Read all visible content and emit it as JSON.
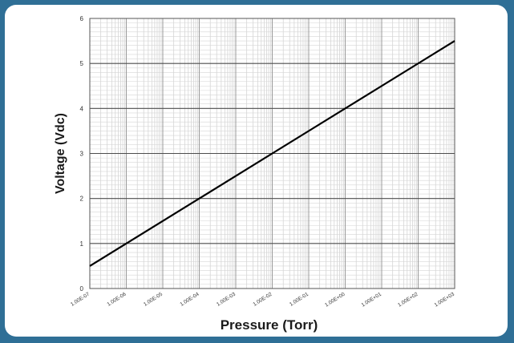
{
  "chart_data": {
    "type": "line",
    "title": "",
    "xlabel": "Pressure (Torr)",
    "ylabel": "Voltage (Vdc)",
    "x_scale": "log",
    "xlim": [
      1e-07,
      1000.0
    ],
    "ylim": [
      0,
      6
    ],
    "grid": true,
    "x_tick_labels": [
      "1.00E-07",
      "1.00E-06",
      "1.00E-05",
      "1.00E-04",
      "1.00E-03",
      "1.00E-02",
      "1.00E-01",
      "1.00E+00",
      "1.00E+01",
      "1.00E+02",
      "1.00E+03"
    ],
    "y_tick_labels": [
      "0",
      "1",
      "2",
      "3",
      "4",
      "5",
      "6"
    ],
    "series": [
      {
        "x": [
          1e-07,
          1000.0
        ],
        "y": [
          0.5,
          5.5
        ],
        "color": "#000000"
      }
    ]
  }
}
